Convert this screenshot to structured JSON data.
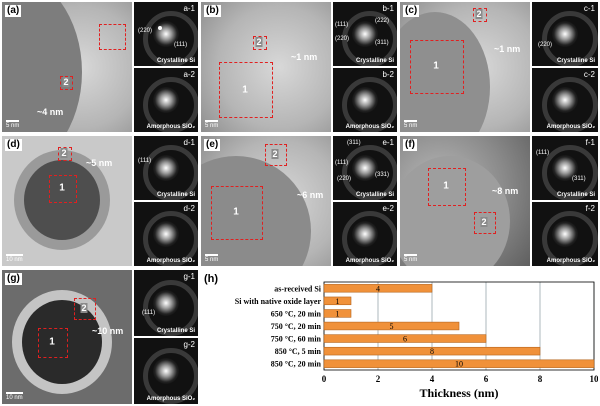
{
  "panels": {
    "a": {
      "label": "(a)",
      "thickness": "~4 nm",
      "box2": "2",
      "scale": "5 nm"
    },
    "b": {
      "label": "(b)",
      "thickness": "~1 nm",
      "box1": "1",
      "box2": "2",
      "scale": "5 nm"
    },
    "c": {
      "label": "(c)",
      "thickness": "~1 nm",
      "box1": "1",
      "box2": "2",
      "scale": "5 nm"
    },
    "d": {
      "label": "(d)",
      "thickness": "~5 nm",
      "box1": "1",
      "box2": "2",
      "scale": "10 nm"
    },
    "e": {
      "label": "(e)",
      "thickness": "~6 nm",
      "box1": "1",
      "box2": "2",
      "scale": "5 nm"
    },
    "f": {
      "label": "(f)",
      "thickness": "~8 nm",
      "box1": "1",
      "box2": "2",
      "scale": "5 nm"
    },
    "g": {
      "label": "(g)",
      "thickness": "~10 nm",
      "box1": "1",
      "box2": "2",
      "scale": "10 nm"
    }
  },
  "ffts": {
    "a1": {
      "id": "a-1",
      "caption": "Crystalline Si",
      "hkl": [
        "(220)",
        "(111)"
      ]
    },
    "a2": {
      "id": "a-2",
      "caption": "Amorphous SiO₂"
    },
    "b1": {
      "id": "b-1",
      "caption": "Crystalline Si",
      "hkl": [
        "(111)",
        "(222)",
        "(220)",
        "(311)"
      ]
    },
    "b2": {
      "id": "b-2",
      "caption": "Amorphous SiO₂"
    },
    "c1": {
      "id": "c-1",
      "caption": "Crystalline Si",
      "hkl": [
        "(220)"
      ]
    },
    "c2": {
      "id": "c-2",
      "caption": "Amorphous SiO₂"
    },
    "d1": {
      "id": "d-1",
      "caption": "Crystalline Si",
      "hkl": [
        "(111)"
      ]
    },
    "d2": {
      "id": "d-2",
      "caption": "Amorphous SiO₂"
    },
    "e1": {
      "id": "e-1",
      "caption": "Crystalline Si",
      "hkl": [
        "(311)",
        "(111)",
        "(220)",
        "(331)"
      ]
    },
    "e2": {
      "id": "e-2",
      "caption": "Amorphous SiO₂"
    },
    "f1": {
      "id": "f-1",
      "caption": "Crystalline Si",
      "hkl": [
        "(111)",
        "(311)"
      ]
    },
    "f2": {
      "id": "f-2",
      "caption": "Amorphous SiO₂"
    },
    "g1": {
      "id": "g-1",
      "caption": "Crystalline Si",
      "hkl": [
        "(111)"
      ]
    },
    "g2": {
      "id": "g-2",
      "caption": "Amorphous SiO₂"
    }
  },
  "chart_label": "(h)",
  "chart_data": {
    "type": "bar",
    "orientation": "horizontal",
    "categories": [
      "as-received Si",
      "Si with native oxide layer",
      "650 °C, 20 min",
      "750 °C, 20 min",
      "750 °C, 60 min",
      "850 °C, 5 min",
      "850 °C, 20 min"
    ],
    "values": [
      4,
      1,
      1,
      5,
      6,
      8,
      10
    ],
    "data_labels": [
      "4",
      "1",
      "1",
      "5",
      "6",
      "8",
      "10"
    ],
    "xlabel": "Thickness (nm)",
    "xlim": [
      0,
      10
    ],
    "xticks": [
      "0",
      "2",
      "4",
      "6",
      "8",
      "10"
    ],
    "grid": true,
    "bar_color": "#f0913a",
    "bar_edge": "#b5651d"
  }
}
